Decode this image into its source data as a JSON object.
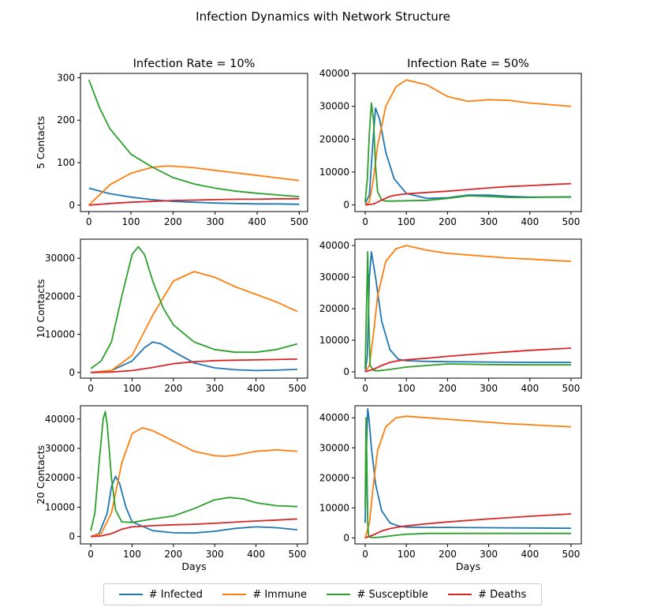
{
  "figure": {
    "title": "Infection Dynamics with Network Structure"
  },
  "colors": {
    "infected": "#1f77b4",
    "immune": "#ff7f0e",
    "susceptible": "#2ca02c",
    "deaths": "#d62728"
  },
  "legend": [
    {
      "label": "# Infected",
      "key": "infected"
    },
    {
      "label": "# Immune",
      "key": "immune"
    },
    {
      "label": "# Susceptible",
      "key": "susceptible"
    },
    {
      "label": "# Deaths",
      "key": "deaths"
    }
  ],
  "chart_data": [
    {
      "type": "line",
      "title": "Infection Rate = 10%",
      "ylabel": "5 Contacts",
      "xlabel": "",
      "xlim": [
        -20,
        520
      ],
      "ylim": [
        -15,
        310
      ],
      "xticks": [
        0,
        100,
        200,
        300,
        400,
        500
      ],
      "yticks": [
        0,
        100,
        200,
        300
      ],
      "series": [
        {
          "name": "# Infected",
          "key": "infected",
          "x": [
            0,
            50,
            100,
            150,
            200,
            250,
            300,
            350,
            400,
            450,
            500
          ],
          "y": [
            40,
            27,
            19,
            13,
            9,
            7,
            5,
            4,
            3,
            3,
            2
          ]
        },
        {
          "name": "# Immune",
          "key": "immune",
          "x": [
            0,
            50,
            100,
            150,
            180,
            200,
            250,
            300,
            350,
            400,
            450,
            500
          ],
          "y": [
            0,
            48,
            75,
            89,
            92,
            92,
            88,
            82,
            76,
            70,
            64,
            58
          ]
        },
        {
          "name": "# Susceptible",
          "key": "susceptible",
          "x": [
            0,
            25,
            50,
            75,
            100,
            150,
            200,
            250,
            300,
            350,
            400,
            450,
            500
          ],
          "y": [
            295,
            230,
            180,
            150,
            120,
            90,
            65,
            50,
            40,
            33,
            28,
            24,
            20
          ]
        },
        {
          "name": "# Deaths",
          "key": "deaths",
          "x": [
            0,
            50,
            100,
            150,
            200,
            250,
            300,
            350,
            400,
            450,
            500
          ],
          "y": [
            0,
            4,
            7,
            9,
            11,
            12,
            13,
            14,
            14,
            15,
            15
          ]
        }
      ]
    },
    {
      "type": "line",
      "title": "Infection Rate = 50%",
      "ylabel": "",
      "xlabel": "",
      "xlim": [
        -25,
        525
      ],
      "ylim": [
        -2000,
        40000
      ],
      "xticks": [
        0,
        100,
        200,
        300,
        400,
        500
      ],
      "yticks": [
        0,
        10000,
        20000,
        30000,
        40000
      ],
      "series": [
        {
          "name": "# Infected",
          "key": "infected",
          "x": [
            0,
            10,
            18,
            25,
            35,
            50,
            70,
            100,
            150,
            200,
            250,
            300,
            350,
            400,
            450,
            500
          ],
          "y": [
            500,
            3000,
            18000,
            29500,
            26000,
            16000,
            8000,
            3500,
            2000,
            2200,
            3000,
            3000,
            2600,
            2400,
            2400,
            2500
          ]
        },
        {
          "name": "# Immune",
          "key": "immune",
          "x": [
            0,
            10,
            20,
            30,
            50,
            75,
            100,
            150,
            200,
            250,
            300,
            350,
            400,
            450,
            500
          ],
          "y": [
            0,
            1000,
            8000,
            18000,
            30000,
            36000,
            38000,
            36500,
            33000,
            31500,
            32000,
            31800,
            31000,
            30500,
            30000
          ]
        },
        {
          "name": "# Susceptible",
          "key": "susceptible",
          "x": [
            0,
            5,
            10,
            15,
            20,
            25,
            30,
            40,
            50,
            70,
            100,
            150,
            200,
            250,
            300,
            350,
            400,
            450,
            500
          ],
          "y": [
            1000,
            8000,
            22000,
            31000,
            26000,
            12000,
            4000,
            1500,
            1200,
            1200,
            1300,
            1400,
            2000,
            2800,
            2600,
            2300,
            2300,
            2400,
            2400
          ]
        },
        {
          "name": "# Deaths",
          "key": "deaths",
          "x": [
            0,
            20,
            40,
            60,
            80,
            100,
            150,
            200,
            250,
            300,
            350,
            400,
            450,
            500
          ],
          "y": [
            0,
            300,
            1500,
            2600,
            3100,
            3400,
            3800,
            4200,
            4700,
            5200,
            5600,
            5900,
            6200,
            6500
          ]
        }
      ]
    },
    {
      "type": "line",
      "title": "",
      "ylabel": "10 Contacts",
      "xlabel": "",
      "xlim": [
        -25,
        525
      ],
      "ylim": [
        -1500,
        35000
      ],
      "xticks": [
        0,
        100,
        200,
        300,
        400,
        500
      ],
      "yticks": [
        0,
        10000,
        20000,
        30000
      ],
      "series": [
        {
          "name": "# Infected",
          "key": "infected",
          "x": [
            0,
            50,
            100,
            130,
            150,
            170,
            200,
            250,
            300,
            350,
            400,
            450,
            500
          ],
          "y": [
            0,
            500,
            3000,
            6500,
            8000,
            7500,
            5500,
            2500,
            1200,
            700,
            500,
            600,
            800
          ]
        },
        {
          "name": "# Immune",
          "key": "immune",
          "x": [
            0,
            50,
            100,
            150,
            200,
            250,
            300,
            350,
            400,
            450,
            500
          ],
          "y": [
            0,
            500,
            4500,
            15000,
            24000,
            26500,
            25000,
            22500,
            20500,
            18500,
            16000
          ]
        },
        {
          "name": "# Susceptible",
          "key": "susceptible",
          "x": [
            0,
            25,
            50,
            75,
            100,
            115,
            130,
            150,
            175,
            200,
            250,
            300,
            350,
            400,
            450,
            500
          ],
          "y": [
            1000,
            3000,
            8000,
            20000,
            31000,
            33000,
            31000,
            24000,
            17000,
            12500,
            8000,
            6000,
            5300,
            5300,
            6000,
            7500
          ]
        },
        {
          "name": "# Deaths",
          "key": "deaths",
          "x": [
            0,
            50,
            100,
            150,
            200,
            250,
            300,
            350,
            400,
            450,
            500
          ],
          "y": [
            0,
            100,
            500,
            1300,
            2300,
            2800,
            3100,
            3200,
            3300,
            3400,
            3500
          ]
        }
      ]
    },
    {
      "type": "line",
      "title": "",
      "ylabel": "",
      "xlabel": "",
      "xlim": [
        -25,
        525
      ],
      "ylim": [
        -2000,
        42000
      ],
      "xticks": [
        0,
        100,
        200,
        300,
        400,
        500
      ],
      "yticks": [
        0,
        10000,
        20000,
        30000,
        40000
      ],
      "series": [
        {
          "name": "# Infected",
          "key": "infected",
          "x": [
            0,
            5,
            10,
            15,
            25,
            40,
            60,
            80,
            100,
            150,
            200,
            300,
            400,
            500
          ],
          "y": [
            0,
            5000,
            30000,
            38000,
            30000,
            16000,
            7000,
            4000,
            3500,
            3300,
            3200,
            3100,
            3000,
            3000
          ]
        },
        {
          "name": "# Immune",
          "key": "immune",
          "x": [
            0,
            10,
            20,
            30,
            50,
            75,
            100,
            150,
            200,
            250,
            300,
            350,
            400,
            450,
            500
          ],
          "y": [
            0,
            2000,
            12000,
            24000,
            35000,
            39000,
            40000,
            38500,
            37500,
            37000,
            36500,
            36000,
            35700,
            35300,
            35000
          ]
        },
        {
          "name": "# Susceptible",
          "key": "susceptible",
          "x": [
            0,
            3,
            6,
            9,
            12,
            20,
            30,
            50,
            100,
            150,
            200,
            300,
            400,
            500
          ],
          "y": [
            1000,
            20000,
            38000,
            15000,
            2000,
            500,
            300,
            600,
            1500,
            2000,
            2500,
            2300,
            2200,
            2200
          ]
        },
        {
          "name": "# Deaths",
          "key": "deaths",
          "x": [
            0,
            20,
            40,
            60,
            80,
            100,
            150,
            200,
            300,
            400,
            500
          ],
          "y": [
            0,
            800,
            2000,
            3000,
            3500,
            3800,
            4300,
            4900,
            5900,
            6800,
            7500
          ]
        }
      ]
    },
    {
      "type": "line",
      "title": "",
      "ylabel": "20 Contacts",
      "xlabel": "Days",
      "xlim": [
        -25,
        525
      ],
      "ylim": [
        -2500,
        44500
      ],
      "xticks": [
        0,
        100,
        200,
        300,
        400,
        500
      ],
      "yticks": [
        0,
        10000,
        20000,
        30000,
        40000
      ],
      "series": [
        {
          "name": "# Infected",
          "key": "infected",
          "x": [
            0,
            20,
            40,
            50,
            60,
            70,
            85,
            100,
            150,
            200,
            250,
            300,
            350,
            400,
            450,
            500
          ],
          "y": [
            0,
            1000,
            8000,
            17000,
            20500,
            18000,
            10000,
            5000,
            2000,
            1300,
            1200,
            1800,
            2800,
            3300,
            3000,
            2300
          ]
        },
        {
          "name": "# Immune",
          "key": "immune",
          "x": [
            0,
            25,
            50,
            75,
            100,
            125,
            150,
            200,
            250,
            300,
            325,
            350,
            400,
            450,
            500
          ],
          "y": [
            0,
            1000,
            8000,
            25000,
            35000,
            37000,
            36000,
            32500,
            29000,
            27500,
            27300,
            27700,
            29000,
            29500,
            29000
          ]
        },
        {
          "name": "# Susceptible",
          "key": "susceptible",
          "x": [
            0,
            10,
            20,
            30,
            35,
            40,
            50,
            60,
            75,
            100,
            150,
            200,
            250,
            300,
            335,
            370,
            400,
            450,
            500
          ],
          "y": [
            2000,
            8000,
            25000,
            40000,
            42500,
            38000,
            20000,
            9000,
            5000,
            4800,
            6000,
            7000,
            9500,
            12500,
            13300,
            12800,
            11500,
            10500,
            10200
          ]
        },
        {
          "name": "# Deaths",
          "key": "deaths",
          "x": [
            0,
            25,
            50,
            75,
            100,
            150,
            200,
            250,
            300,
            350,
            400,
            450,
            500
          ],
          "y": [
            0,
            200,
            1000,
            2500,
            3300,
            3700,
            4000,
            4200,
            4500,
            4900,
            5300,
            5600,
            6000
          ]
        }
      ]
    },
    {
      "type": "line",
      "title": "",
      "ylabel": "",
      "xlabel": "Days",
      "xlim": [
        -25,
        525
      ],
      "ylim": [
        -2000,
        44000
      ],
      "xticks": [
        0,
        100,
        200,
        300,
        400,
        500
      ],
      "yticks": [
        0,
        10000,
        20000,
        30000,
        40000
      ],
      "series": [
        {
          "name": "# Infected",
          "key": "infected",
          "x": [
            0,
            3,
            6,
            9,
            15,
            25,
            40,
            60,
            80,
            100,
            150,
            200,
            300,
            400,
            500
          ],
          "y": [
            5000,
            30000,
            43000,
            40000,
            30000,
            18000,
            9000,
            5000,
            4000,
            3600,
            3500,
            3500,
            3400,
            3300,
            3200
          ]
        },
        {
          "name": "# Immune",
          "key": "immune",
          "x": [
            0,
            10,
            20,
            30,
            50,
            75,
            100,
            150,
            200,
            250,
            300,
            350,
            400,
            450,
            500
          ],
          "y": [
            0,
            5000,
            18000,
            29000,
            37000,
            40000,
            40500,
            40000,
            39500,
            39000,
            38500,
            38000,
            37700,
            37300,
            37000
          ]
        },
        {
          "name": "# Susceptible",
          "key": "susceptible",
          "x": [
            0,
            2,
            4,
            6,
            8,
            12,
            20,
            40,
            75,
            100,
            150,
            200,
            300,
            400,
            500
          ],
          "y": [
            10000,
            40000,
            25000,
            5000,
            800,
            200,
            100,
            300,
            900,
            1200,
            1500,
            1500,
            1500,
            1500,
            1500
          ]
        },
        {
          "name": "# Deaths",
          "key": "deaths",
          "x": [
            0,
            20,
            40,
            60,
            80,
            100,
            150,
            200,
            300,
            400,
            500
          ],
          "y": [
            0,
            1000,
            2300,
            3100,
            3600,
            4000,
            4700,
            5300,
            6300,
            7200,
            8000
          ]
        }
      ]
    }
  ]
}
